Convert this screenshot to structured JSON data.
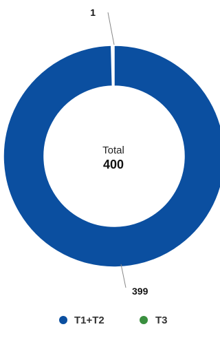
{
  "chart_data": {
    "type": "pie",
    "donut": true,
    "categories": [
      "T1+T2",
      "T3"
    ],
    "values": [
      399,
      1
    ],
    "colors": [
      "#0b4fa0",
      "#3a8f3f"
    ],
    "data_labels": [
      "399",
      "1"
    ],
    "center": {
      "label": "Total",
      "value": "400"
    },
    "legend": {
      "position": "bottom",
      "items": [
        "T1+T2",
        "T3"
      ]
    }
  }
}
